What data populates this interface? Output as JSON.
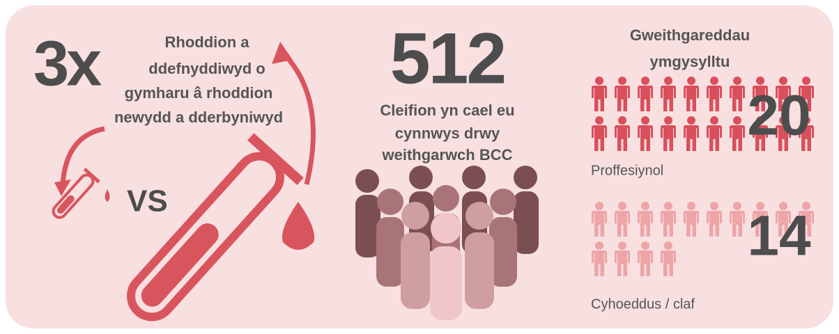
{
  "left": {
    "multiplier": "3x",
    "text": [
      "Rhoddion a",
      "ddefnyddiwyd o",
      "gymharu â rhoddion",
      "newydd a dderbyniwyd"
    ],
    "vs": "VS"
  },
  "middle": {
    "number": "512",
    "text": [
      "Cleifion yn cael eu",
      "cynnwys drwy",
      "weithgarwch BCC"
    ]
  },
  "right": {
    "title": [
      "Gweithgareddau",
      "ymgysylltu"
    ],
    "groups": [
      {
        "count": 20,
        "label": "Proffesiynol",
        "color": "#d9505c"
      },
      {
        "count": 14,
        "label": "Cyhoeddus / claf",
        "color": "#eda5a8"
      }
    ]
  }
}
